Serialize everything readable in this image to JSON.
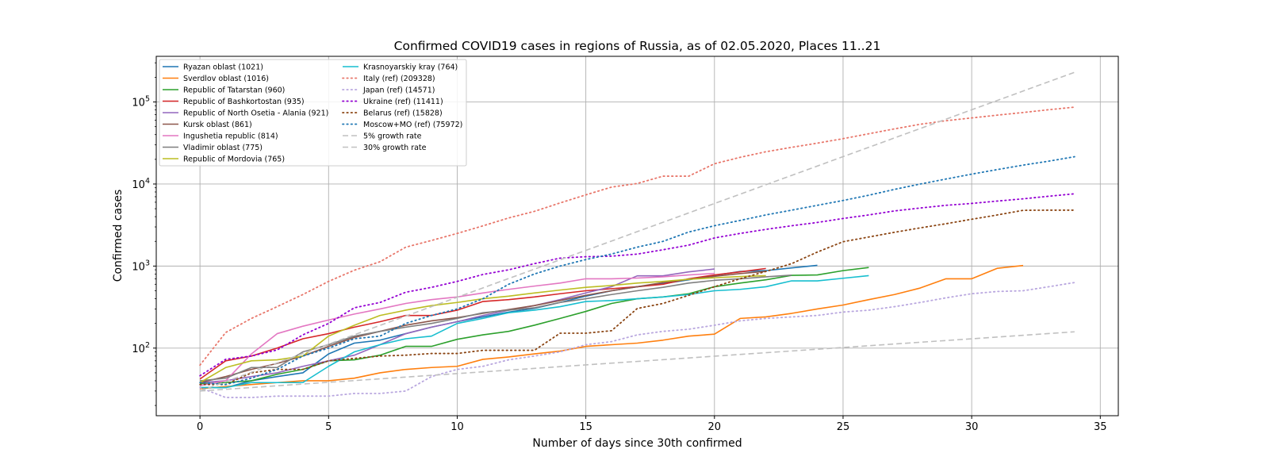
{
  "chart_data": {
    "type": "line",
    "title": "Confirmed COVID19 cases in regions of Russia, as of 02.05.2020, Places 11..21",
    "xlabel": "Number of days since 30th confirmed",
    "ylabel": "Confirmed cases",
    "yscale": "log",
    "xlim": [
      -1.7,
      35.7
    ],
    "ylim": [
      15,
      360000
    ],
    "xticks": [
      0,
      5,
      10,
      15,
      20,
      25,
      30,
      35
    ],
    "yticks": [
      {
        "value": 100,
        "base": "10",
        "exp": "2"
      },
      {
        "value": 1000,
        "base": "10",
        "exp": "3"
      },
      {
        "value": 10000,
        "base": "10",
        "exp": "4"
      },
      {
        "value": 100000,
        "base": "10",
        "exp": "5"
      }
    ],
    "grid": true,
    "legend_position": "top-left",
    "series": [
      {
        "name": "Ryazan oblast (1021)",
        "color": "#1f77b4",
        "style": "solid",
        "x": [
          0,
          1,
          2,
          3,
          4,
          5,
          6,
          7,
          8,
          9,
          10,
          11,
          12,
          13,
          14,
          15,
          16,
          17,
          18,
          19,
          20,
          21,
          22,
          23,
          24
        ],
        "y": [
          33,
          33,
          40,
          45,
          50,
          85,
          115,
          125,
          150,
          180,
          210,
          240,
          275,
          305,
          360,
          430,
          500,
          560,
          610,
          680,
          770,
          860,
          880,
          950,
          1021
        ]
      },
      {
        "name": "Sverdlov oblast (1016)",
        "color": "#ff7f0e",
        "style": "solid",
        "x": [
          0,
          1,
          2,
          3,
          4,
          5,
          6,
          7,
          8,
          9,
          10,
          11,
          12,
          13,
          14,
          15,
          16,
          17,
          18,
          19,
          20,
          21,
          22,
          23,
          24,
          25,
          26,
          27,
          28,
          29,
          30,
          31,
          32
        ],
        "y": [
          32,
          34,
          36,
          38,
          40,
          40,
          43,
          50,
          55,
          58,
          60,
          73,
          78,
          85,
          92,
          105,
          110,
          115,
          125,
          140,
          148,
          230,
          240,
          265,
          300,
          335,
          390,
          450,
          540,
          700,
          700,
          940,
          1016
        ]
      },
      {
        "name": "Republic of Tatarstan (960)",
        "color": "#2ca02c",
        "style": "solid",
        "x": [
          0,
          1,
          2,
          3,
          4,
          5,
          6,
          7,
          8,
          9,
          10,
          11,
          12,
          13,
          14,
          15,
          16,
          17,
          18,
          19,
          20,
          21,
          22,
          23,
          24,
          25,
          26
        ],
        "y": [
          37,
          38,
          40,
          48,
          55,
          70,
          72,
          82,
          105,
          105,
          128,
          145,
          160,
          190,
          230,
          280,
          350,
          400,
          420,
          460,
          560,
          620,
          680,
          770,
          780,
          880,
          960
        ]
      },
      {
        "name": "Republic of Bashkortostan (935)",
        "color": "#d62728",
        "style": "solid",
        "x": [
          0,
          1,
          2,
          3,
          4,
          5,
          6,
          7,
          8,
          9,
          10,
          11,
          12,
          13,
          14,
          15,
          16,
          17,
          18,
          19,
          20,
          21,
          22
        ],
        "y": [
          42,
          70,
          80,
          100,
          130,
          150,
          180,
          210,
          250,
          250,
          290,
          370,
          390,
          420,
          460,
          500,
          530,
          560,
          600,
          700,
          780,
          850,
          935
        ]
      },
      {
        "name": "Republic of North Osetia - Alania (921)",
        "color": "#9467bd",
        "style": "solid",
        "x": [
          0,
          1,
          2,
          3,
          4,
          5,
          6,
          7,
          8,
          9,
          10,
          11,
          12,
          13,
          14,
          15,
          16,
          17,
          18,
          19,
          20
        ],
        "y": [
          38,
          40,
          45,
          50,
          60,
          70,
          82,
          110,
          150,
          180,
          210,
          250,
          290,
          330,
          390,
          470,
          560,
          760,
          760,
          850,
          921
        ]
      },
      {
        "name": "Kursk oblast (861)",
        "color": "#8c564b",
        "style": "solid",
        "x": [
          0,
          1,
          2,
          3,
          4,
          5,
          6,
          7,
          8,
          9,
          10,
          11,
          12,
          13,
          14,
          15,
          16,
          17,
          18,
          19,
          20,
          21,
          22
        ],
        "y": [
          38,
          45,
          55,
          65,
          80,
          105,
          135,
          160,
          190,
          215,
          235,
          265,
          295,
          330,
          380,
          440,
          500,
          560,
          630,
          690,
          750,
          810,
          861
        ]
      },
      {
        "name": "Ingushetia republic (814)",
        "color": "#e377c2",
        "style": "solid",
        "x": [
          0,
          1,
          2,
          3,
          4,
          5,
          6,
          7,
          8,
          9,
          10,
          11,
          12,
          13,
          14,
          15,
          16,
          17,
          18,
          19,
          20
        ],
        "y": [
          35,
          40,
          85,
          150,
          185,
          220,
          260,
          300,
          350,
          390,
          420,
          470,
          520,
          570,
          620,
          700,
          700,
          714,
          740,
          780,
          814
        ]
      },
      {
        "name": "Vladimir oblast (775)",
        "color": "#7f7f7f",
        "style": "solid",
        "x": [
          0,
          1,
          2,
          3,
          4,
          5,
          6,
          7,
          8,
          9,
          10,
          11,
          12,
          13,
          14,
          15,
          16,
          17,
          18,
          19,
          20,
          21,
          22,
          23
        ],
        "y": [
          40,
          43,
          58,
          58,
          90,
          110,
          140,
          160,
          180,
          200,
          230,
          270,
          290,
          310,
          360,
          400,
          450,
          500,
          550,
          620,
          670,
          700,
          740,
          775
        ]
      },
      {
        "name": "Republic of Mordovia (765)",
        "color": "#bcbd22",
        "style": "solid",
        "x": [
          0,
          1,
          2,
          3,
          4,
          5,
          6,
          7,
          8,
          9,
          10,
          11,
          12,
          13,
          14,
          15,
          16,
          17,
          18,
          19,
          20,
          21,
          22
        ],
        "y": [
          38,
          58,
          70,
          72,
          80,
          140,
          190,
          250,
          290,
          330,
          360,
          400,
          430,
          470,
          510,
          550,
          580,
          620,
          650,
          690,
          720,
          745,
          765
        ]
      },
      {
        "name": "Krasnoyarskiy kray (764)",
        "color": "#17becf",
        "style": "solid",
        "x": [
          0,
          1,
          2,
          3,
          4,
          5,
          6,
          7,
          8,
          9,
          10,
          11,
          12,
          13,
          14,
          15,
          16,
          17,
          18,
          19,
          20,
          21,
          22,
          23,
          24,
          25,
          26
        ],
        "y": [
          33,
          33,
          38,
          38,
          38,
          60,
          90,
          110,
          130,
          140,
          200,
          230,
          270,
          290,
          320,
          370,
          380,
          400,
          420,
          450,
          500,
          520,
          560,
          660,
          660,
          710,
          764
        ]
      },
      {
        "name": "Italy (ref) (209328)",
        "color": "#e8766a",
        "style": "dotted",
        "x": [
          0,
          1,
          2,
          3,
          4,
          5,
          6,
          7,
          8,
          9,
          10,
          11,
          12,
          13,
          14,
          15,
          16,
          17,
          18,
          19,
          20,
          21,
          22,
          23,
          24,
          25,
          26,
          27,
          28,
          29,
          30,
          31,
          32,
          33,
          34
        ],
        "y": [
          62,
          155,
          230,
          320,
          450,
          650,
          890,
          1130,
          1700,
          2050,
          2500,
          3090,
          3860,
          4640,
          5880,
          7380,
          9170,
          10150,
          12460,
          12460,
          17660,
          21150,
          24750,
          27980,
          31500,
          35700,
          41000,
          47000,
          53500,
          59100,
          63900,
          69100,
          74400,
          80500,
          86500
        ]
      },
      {
        "name": "Japan (ref) (14571)",
        "color": "#b9a7df",
        "style": "dotted",
        "x": [
          0,
          1,
          2,
          3,
          4,
          5,
          6,
          7,
          8,
          9,
          10,
          11,
          12,
          13,
          14,
          15,
          16,
          17,
          18,
          19,
          20,
          21,
          22,
          23,
          24,
          25,
          26,
          27,
          28,
          29,
          30,
          31,
          32,
          33,
          34
        ],
        "y": [
          33,
          25,
          25,
          26,
          26,
          26,
          28,
          28,
          30,
          45,
          55,
          60,
          72,
          80,
          90,
          110,
          120,
          145,
          160,
          170,
          190,
          215,
          230,
          240,
          250,
          275,
          290,
          320,
          360,
          410,
          460,
          490,
          500,
          560,
          630
        ]
      },
      {
        "name": "Ukraine (ref) (11411)",
        "color": "#9400d3",
        "style": "dotted",
        "x": [
          0,
          1,
          2,
          3,
          4,
          5,
          6,
          7,
          8,
          9,
          10,
          11,
          12,
          13,
          14,
          15,
          16,
          17,
          18,
          19,
          20,
          21,
          22,
          23,
          24,
          25,
          26,
          27,
          28,
          29,
          30,
          31,
          32,
          33,
          34
        ],
        "y": [
          46,
          73,
          80,
          95,
          145,
          200,
          310,
          360,
          480,
          550,
          650,
          790,
          900,
          1070,
          1250,
          1300,
          1320,
          1400,
          1580,
          1800,
          2200,
          2500,
          2800,
          3100,
          3400,
          3800,
          4200,
          4700,
          5100,
          5500,
          5800,
          6200,
          6600,
          7100,
          7600
        ]
      },
      {
        "name": "Belarus (ref) (15828)",
        "color": "#8b4513",
        "style": "dotted",
        "x": [
          0,
          1,
          2,
          3,
          4,
          5,
          6,
          7,
          8,
          9,
          10,
          11,
          12,
          13,
          14,
          15,
          16,
          17,
          18,
          19,
          20,
          21,
          22,
          23,
          24,
          25,
          26,
          27,
          28,
          29,
          30,
          31,
          32,
          33,
          34
        ],
        "y": [
          36,
          36,
          50,
          55,
          55,
          70,
          75,
          80,
          82,
          86,
          86,
          94,
          94,
          94,
          152,
          152,
          163,
          304,
          350,
          440,
          560,
          700,
          860,
          1070,
          1480,
          1980,
          2260,
          2580,
          2920,
          3280,
          3720,
          4200,
          4780,
          4800,
          4800
        ]
      },
      {
        "name": "Moscow+MO (ref) (75972)",
        "color": "#1f77b4",
        "style": "dotted",
        "x": [
          0,
          1,
          2,
          3,
          4,
          5,
          6,
          7,
          8,
          9,
          10,
          11,
          12,
          13,
          14,
          15,
          16,
          17,
          18,
          19,
          20,
          21,
          22,
          23,
          24,
          25,
          26,
          27,
          28,
          29,
          30,
          31,
          32,
          33,
          34
        ],
        "y": [
          38,
          36,
          43,
          55,
          80,
          100,
          130,
          140,
          200,
          250,
          300,
          400,
          600,
          800,
          1000,
          1200,
          1400,
          1700,
          2000,
          2600,
          3100,
          3600,
          4200,
          4800,
          5500,
          6300,
          7300,
          8600,
          10000,
          11500,
          13200,
          15000,
          17000,
          19000,
          21500
        ]
      },
      {
        "name": "5% growth rate",
        "color": "#c0c0c0",
        "style": "dashed",
        "x": [
          0,
          34
        ],
        "y": [
          30,
          158
        ]
      },
      {
        "name": "30% growth rate",
        "color": "#c0c0c0",
        "style": "dashed",
        "x": [
          0,
          34
        ],
        "y": [
          30,
          230000
        ]
      }
    ]
  }
}
